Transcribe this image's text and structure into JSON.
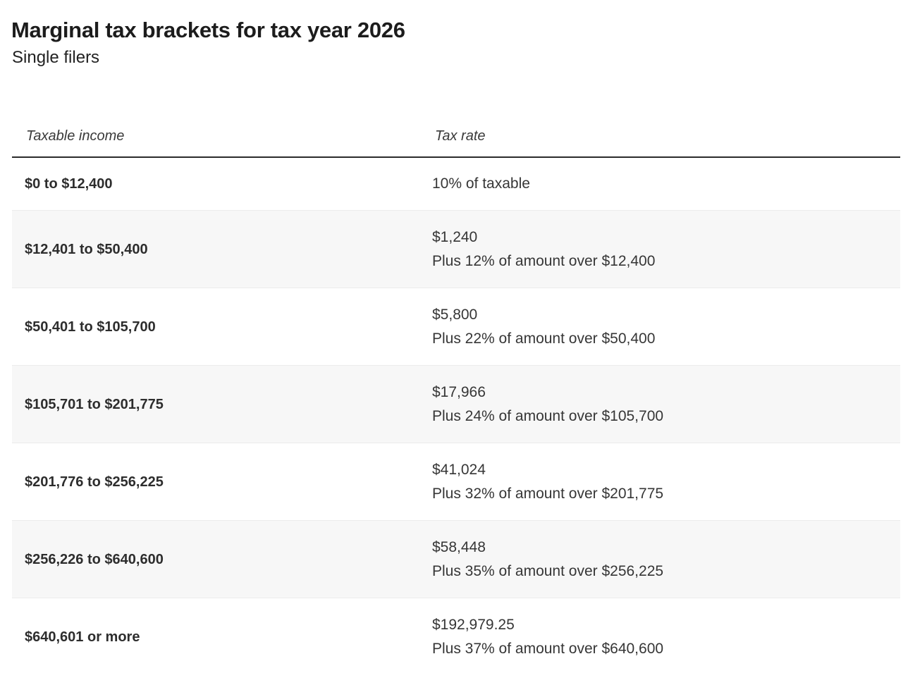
{
  "page": {
    "title": "Marginal tax brackets for tax year 2026",
    "subtitle": "Single filers"
  },
  "table": {
    "columns": {
      "income": "Taxable income",
      "rate": "Tax rate"
    },
    "rows": [
      {
        "income": "$0 to $12,400",
        "rate_lines": [
          "10% of taxable"
        ]
      },
      {
        "income": "$12,401 to $50,400",
        "rate_lines": [
          "$1,240",
          "Plus 12% of amount over $12,400"
        ]
      },
      {
        "income": "$50,401 to $105,700",
        "rate_lines": [
          "$5,800",
          "Plus 22% of amount over $50,400"
        ]
      },
      {
        "income": "$105,701 to $201,775",
        "rate_lines": [
          "$17,966",
          "Plus 24% of amount over $105,700"
        ]
      },
      {
        "income": "$201,776 to $256,225",
        "rate_lines": [
          "$41,024",
          "Plus 32% of amount over $201,775"
        ]
      },
      {
        "income": "$256,226 to $640,600",
        "rate_lines": [
          "$58,448",
          "Plus 35% of amount over $256,225"
        ]
      },
      {
        "income": "$640,601 or more",
        "rate_lines": [
          "$192,979.25",
          "Plus 37% of amount over $640,600"
        ]
      }
    ]
  },
  "chart_data": {
    "type": "table",
    "title": "Marginal tax brackets for tax year 2026",
    "subtitle": "Single filers",
    "columns": [
      "Taxable income",
      "Tax rate"
    ],
    "rows": [
      [
        "$0 to $12,400",
        "10% of taxable"
      ],
      [
        "$12,401 to $50,400",
        "$1,240 Plus 12% of amount over $12,400"
      ],
      [
        "$50,401 to $105,700",
        "$5,800 Plus 22% of amount over $50,400"
      ],
      [
        "$105,701 to $201,775",
        "$17,966 Plus 24% of amount over $105,700"
      ],
      [
        "$201,776 to $256,225",
        "$41,024 Plus 32% of amount over $201,775"
      ],
      [
        "$256,226 to $640,600",
        "$58,448 Plus 35% of amount over $256,225"
      ],
      [
        "$640,601 or more",
        "$192,979.25 Plus 37% of amount over $640,600"
      ]
    ],
    "brackets": [
      {
        "min": 0,
        "max": 12400,
        "rate_pct": 10,
        "base_tax": 0
      },
      {
        "min": 12401,
        "max": 50400,
        "rate_pct": 12,
        "base_tax": 1240
      },
      {
        "min": 50401,
        "max": 105700,
        "rate_pct": 22,
        "base_tax": 5800
      },
      {
        "min": 105701,
        "max": 201775,
        "rate_pct": 24,
        "base_tax": 17966
      },
      {
        "min": 201776,
        "max": 256225,
        "rate_pct": 32,
        "base_tax": 41024
      },
      {
        "min": 256226,
        "max": 640600,
        "rate_pct": 35,
        "base_tax": 58448
      },
      {
        "min": 640601,
        "max": null,
        "rate_pct": 37,
        "base_tax": 192979.25
      }
    ],
    "layout": {
      "alternating_row_shading": true,
      "header_rule": true
    }
  },
  "colors": {
    "row_alt_background": "#f7f7f7",
    "row_divider": "#ececec",
    "header_rule": "#2b2b2b",
    "title_text": "#1c1c1c",
    "body_text": "#363636"
  }
}
